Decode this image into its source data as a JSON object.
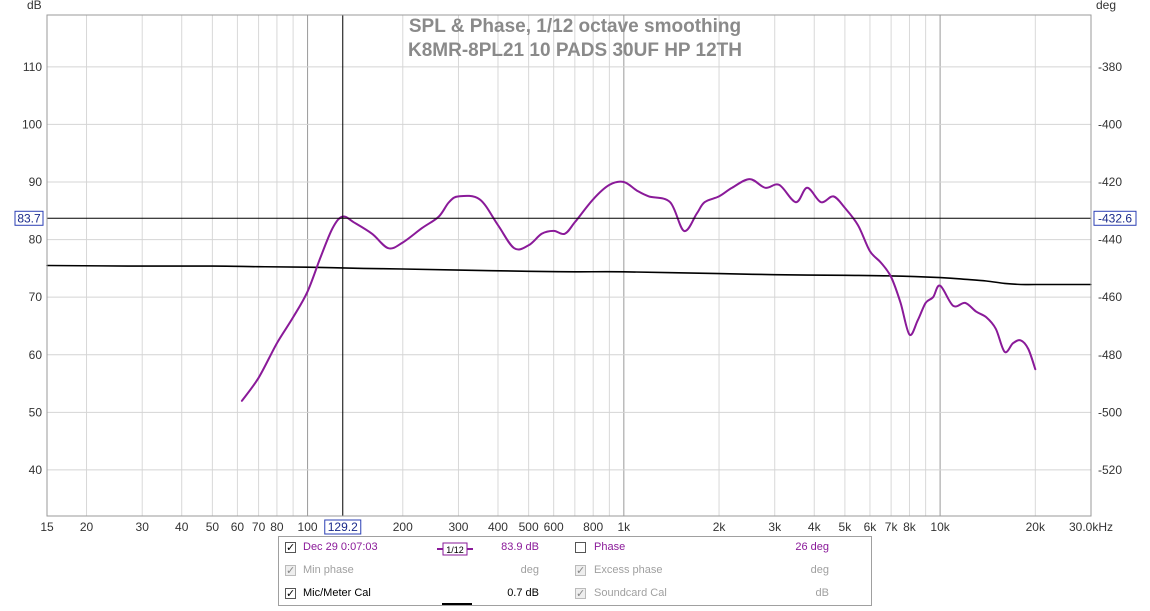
{
  "chart_data": {
    "type": "line",
    "title": "SPL & Phase, 1/12 octave smoothing",
    "subtitle": "K8MR-8PL21 10 PADS 30UF HP 12TH",
    "xlabel_unit": "Hz",
    "left_unit": "dB",
    "right_unit": "deg",
    "x_scale": "log",
    "xlim": [
      15,
      30000
    ],
    "ylim_left": [
      32,
      119
    ],
    "ylim_right": [
      -536,
      -362
    ],
    "grid": true,
    "x_ticks": [
      {
        "v": 15,
        "t": "15"
      },
      {
        "v": 20,
        "t": "20"
      },
      {
        "v": 30,
        "t": "30"
      },
      {
        "v": 40,
        "t": "40"
      },
      {
        "v": 50,
        "t": "50"
      },
      {
        "v": 60,
        "t": "60"
      },
      {
        "v": 70,
        "t": "70"
      },
      {
        "v": 80,
        "t": "80"
      },
      {
        "v": 100,
        "t": "100"
      },
      {
        "v": 200,
        "t": "200"
      },
      {
        "v": 300,
        "t": "300"
      },
      {
        "v": 400,
        "t": "400"
      },
      {
        "v": 500,
        "t": "500"
      },
      {
        "v": 600,
        "t": "600"
      },
      {
        "v": 800,
        "t": "800"
      },
      {
        "v": 1000,
        "t": "1k"
      },
      {
        "v": 2000,
        "t": "2k"
      },
      {
        "v": 3000,
        "t": "3k"
      },
      {
        "v": 4000,
        "t": "4k"
      },
      {
        "v": 5000,
        "t": "5k"
      },
      {
        "v": 6000,
        "t": "6k"
      },
      {
        "v": 7000,
        "t": "7k"
      },
      {
        "v": 8000,
        "t": "8k"
      },
      {
        "v": 10000,
        "t": "10k"
      },
      {
        "v": 20000,
        "t": "20k"
      },
      {
        "v": 30000,
        "t": "30.0kHz"
      }
    ],
    "left_ticks": [
      40,
      50,
      60,
      70,
      80,
      90,
      100,
      110
    ],
    "right_ticks": [
      -520,
      -500,
      -480,
      -460,
      -440,
      -420,
      -400,
      -380
    ],
    "cursor": {
      "x": 129.2,
      "x_label": "129.2",
      "left_value": 83.7,
      "left_label": "83.7",
      "right_label": "-432.6"
    },
    "series": [
      {
        "name": "Dec 29 0:07:03",
        "axis": "left",
        "color": "#8a1a99",
        "x": [
          62,
          70,
          80,
          90,
          100,
          110,
          120,
          129,
          140,
          160,
          180,
          200,
          230,
          260,
          280,
          300,
          350,
          400,
          450,
          500,
          550,
          600,
          650,
          700,
          800,
          900,
          1000,
          1100,
          1200,
          1400,
          1550,
          1700,
          1800,
          2000,
          2200,
          2500,
          2800,
          3100,
          3500,
          3800,
          4200,
          4600,
          5000,
          5500,
          6000,
          6500,
          7000,
          7500,
          8000,
          8500,
          9000,
          9500,
          10000,
          11000,
          12000,
          13000,
          14000,
          15000,
          16000,
          17000,
          18000,
          19000,
          20000
        ],
        "y": [
          52,
          56,
          62,
          66.5,
          71,
          77,
          82,
          84,
          83,
          81,
          78.5,
          79.5,
          82,
          84,
          86.5,
          87.5,
          87,
          82.5,
          78.5,
          79,
          81,
          81.5,
          81,
          83,
          87,
          89.5,
          90,
          88.5,
          87.5,
          86.5,
          81.5,
          84.5,
          86.5,
          87.5,
          89,
          90.5,
          89,
          89.5,
          86.5,
          89,
          86.5,
          87.5,
          85.5,
          82.5,
          78,
          76,
          73.5,
          69,
          63.5,
          66,
          69,
          70,
          72,
          68.5,
          69,
          67.5,
          66.5,
          64.5,
          60.5,
          62,
          62.5,
          61,
          57.5
        ]
      },
      {
        "name": "Mic/Meter Cal",
        "axis": "left",
        "color": "#000000",
        "x": [
          15,
          30,
          50,
          70,
          100,
          150,
          200,
          300,
          500,
          700,
          1000,
          2000,
          3000,
          5000,
          7000,
          10000,
          12000,
          14000,
          16000,
          18000,
          20000,
          25000,
          30000
        ],
        "y": [
          75.5,
          75.4,
          75.4,
          75.3,
          75.2,
          75,
          74.9,
          74.7,
          74.5,
          74.4,
          74.4,
          74.1,
          73.9,
          73.8,
          73.7,
          73.4,
          73.1,
          72.8,
          72.4,
          72.2,
          72.2,
          72.2,
          72.2
        ]
      }
    ]
  },
  "legend": {
    "rows": [
      {
        "checked": true,
        "label": "Dec 29 0:07:03",
        "smoothing_symbol": "1/12",
        "value": "83.9 dB",
        "phase_checked": false,
        "phase_label": "Phase",
        "phase_value": "26 deg"
      },
      {
        "checked": true,
        "label": "Min phase",
        "value": "deg",
        "phase_checked": true,
        "phase_label": "Excess phase",
        "phase_value": "deg"
      },
      {
        "checked": true,
        "label": "Mic/Meter Cal",
        "value": "0.7 dB",
        "phase_checked": true,
        "phase_label": "Soundcard Cal",
        "phase_value": "dB"
      }
    ],
    "check_mark": "✓"
  }
}
